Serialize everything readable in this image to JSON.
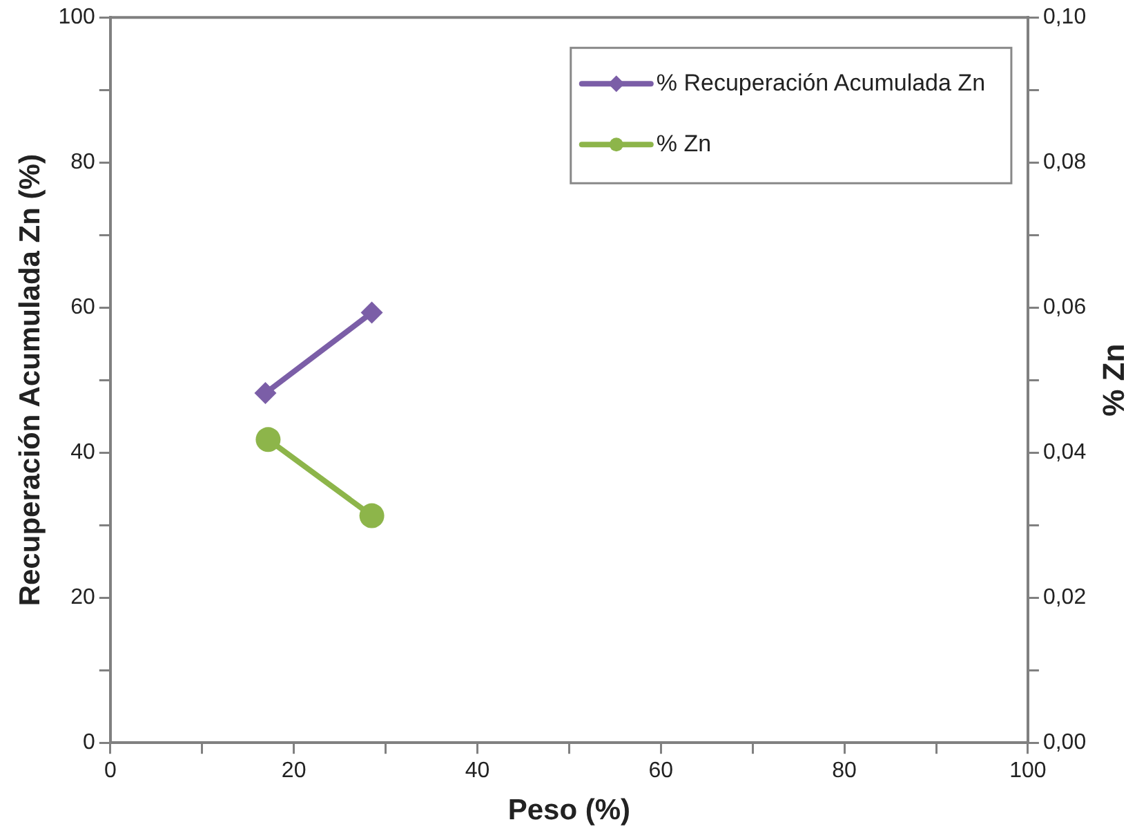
{
  "chart_data": {
    "type": "line",
    "xlabel": "Peso (%)",
    "ylabel": "Recuperación Acumulada Zn (%)",
    "y2label": "% Zn",
    "series": [
      {
        "name": "% Recuperación Acumulada Zn",
        "color": "#7b5ea7",
        "x": [
          16.9,
          28.5
        ],
        "values": [
          48.2,
          59.3
        ],
        "marker": "diamond"
      },
      {
        "name": "% Zn",
        "color": "#8db54a",
        "x": [
          17.2,
          28.5
        ],
        "values": [
          0.0418,
          0.0313
        ],
        "marker": "circle",
        "axis": "y2"
      }
    ],
    "xlim": [
      0,
      100
    ],
    "xticks": [
      0,
      {
        "value": 10,
        "label": null
      },
      20,
      {
        "value": 30,
        "label": null
      },
      40,
      {
        "value": 50,
        "label": null
      },
      60,
      {
        "value": 70,
        "label": null
      },
      80,
      {
        "value": 90,
        "label": null
      },
      100
    ],
    "ylim": [
      0,
      100
    ],
    "yticks": [
      0,
      {
        "value": 10,
        "label": null
      },
      20,
      {
        "value": 30,
        "label": null
      },
      40,
      {
        "value": 50,
        "label": null
      },
      60,
      {
        "value": 70,
        "label": null
      },
      80,
      {
        "value": 90,
        "label": null
      },
      100
    ],
    "y2lim": [
      0,
      0.1
    ],
    "y2ticks": [
      {
        "value": 0,
        "label": "0,00"
      },
      {
        "value": 0.01,
        "label": null
      },
      {
        "value": 0.02,
        "label": "0,02"
      },
      {
        "value": 0.03,
        "label": null
      },
      {
        "value": 0.04,
        "label": "0,04"
      },
      {
        "value": 0.05,
        "label": null
      },
      {
        "value": 0.06,
        "label": "0,06"
      },
      {
        "value": 0.07,
        "label": null
      },
      {
        "value": 0.08,
        "label": "0,08"
      },
      {
        "value": 0.09,
        "label": null
      },
      {
        "value": 0.1,
        "label": "0,10"
      }
    ],
    "grid": false,
    "legend": "top right",
    "line_style": "solid"
  }
}
